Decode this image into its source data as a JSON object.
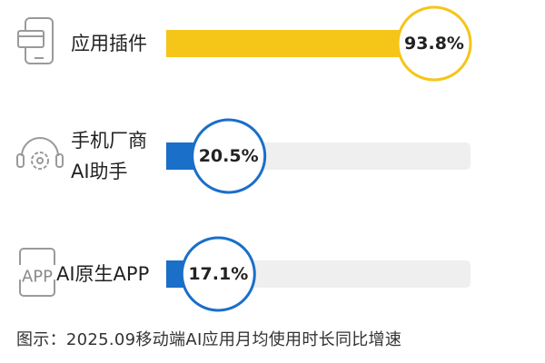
{
  "chart_data": {
    "type": "bar",
    "orientation": "horizontal",
    "categories": [
      "应用插件",
      "手机厂商AI助手",
      "AI原生APP"
    ],
    "category_lines": [
      [
        "应用插件"
      ],
      [
        "手机厂商",
        "AI助手"
      ],
      [
        "AI原生APP"
      ]
    ],
    "values": [
      93.8,
      20.5,
      17.1
    ],
    "value_labels": [
      "93.8%",
      "20.5%",
      "17.1%"
    ],
    "unit": "%",
    "xlim": [
      0,
      100
    ],
    "icons": [
      "phone-apps-icon",
      "headset-gear-icon",
      "app-screen-icon"
    ],
    "icon_texts": [
      "",
      "",
      "APP"
    ],
    "bar_colors": [
      "#F5C518",
      "#1A6FC9",
      "#1A6FC9"
    ],
    "track_color": "#EFEFEF",
    "grid": false
  },
  "caption": "图示：2025.09移动端AI应用月均使用时长同比增速"
}
